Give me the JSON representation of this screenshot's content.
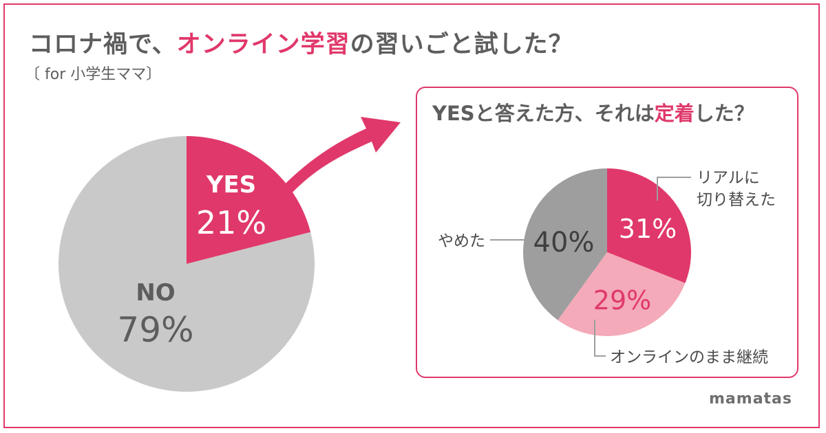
{
  "title": {
    "part1": "コロナ禍で、",
    "highlight": "オンライン学習",
    "part2": "の習いごと試した？"
  },
  "subtitle": "〔 for 小学生ママ〕",
  "panel_title": {
    "part1": "YESと答えた方、それは",
    "highlight": "定着",
    "part2": "した？"
  },
  "logo": "mamatas",
  "colors": {
    "accent": "#e0386a",
    "light_pink": "#f4aab8",
    "light_gray": "#c9c9c9",
    "mid_gray": "#9e9e9e",
    "text": "#5d5d5d"
  },
  "chart_data": [
    {
      "type": "pie",
      "slices": [
        {
          "label": "YES",
          "value": 21,
          "value_label": "21%",
          "color": "#e0386a"
        },
        {
          "label": "NO",
          "value": 79,
          "value_label": "79%",
          "color": "#c9c9c9"
        }
      ]
    },
    {
      "type": "pie",
      "slices": [
        {
          "label": "リアルに 切り替えた",
          "value": 31,
          "value_label": "31%",
          "color": "#e0386a"
        },
        {
          "label": "オンラインのまま継続",
          "value": 29,
          "value_label": "29%",
          "color": "#f4aab8"
        },
        {
          "label": "やめた",
          "value": 40,
          "value_label": "40%",
          "color": "#9e9e9e"
        }
      ]
    }
  ]
}
